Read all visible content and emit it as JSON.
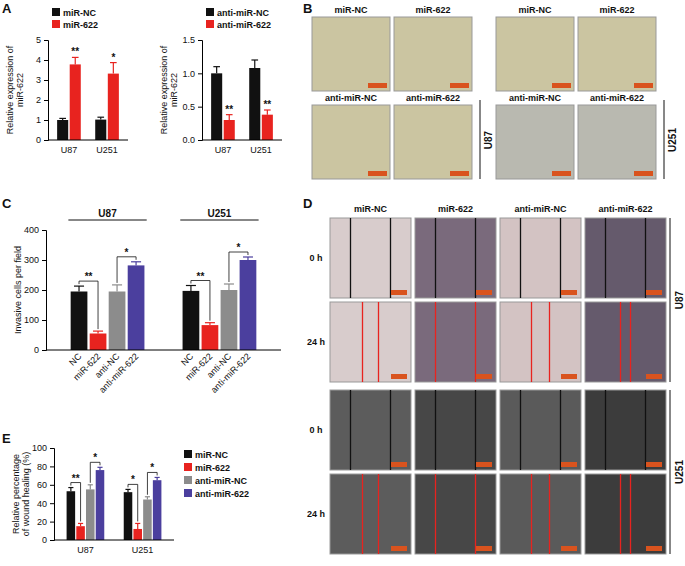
{
  "panel_labels": [
    "A",
    "B",
    "C",
    "D",
    "E"
  ],
  "chart_data": [
    {
      "type": "bar",
      "y_label": "Relative expression of miR-622",
      "categories": [
        "U87",
        "U251"
      ],
      "series": [
        {
          "name": "miR-NC",
          "color": "#111111",
          "values": [
            1.0,
            1.02
          ],
          "errors": [
            0.08,
            0.12
          ]
        },
        {
          "name": "miR-622",
          "color": "#e8231f",
          "values": [
            3.78,
            3.32
          ],
          "errors": [
            0.35,
            0.55
          ]
        }
      ],
      "ylim": [
        0,
        5
      ],
      "yticks": [
        0,
        1,
        2,
        3,
        4,
        5
      ],
      "legend": "top-left",
      "annotations": [
        {
          "text": "**",
          "category": 0,
          "series": 1
        },
        {
          "text": "*",
          "category": 1,
          "series": 1
        }
      ]
    },
    {
      "type": "bar",
      "y_label": "Relative expression of miR-622",
      "categories": [
        "U87",
        "U251"
      ],
      "series": [
        {
          "name": "anti-miR-NC",
          "color": "#111111",
          "values": [
            1.0,
            1.08
          ],
          "errors": [
            0.1,
            0.12
          ]
        },
        {
          "name": "anti-miR-622",
          "color": "#e8231f",
          "values": [
            0.3,
            0.38
          ],
          "errors": [
            0.08,
            0.07
          ]
        }
      ],
      "ylim": [
        0,
        1.5
      ],
      "yticks": [
        {
          "value": 0,
          "label": "0.0"
        },
        {
          "value": 0.5,
          "label": "0.5"
        },
        {
          "value": 1,
          "label": "1.0"
        },
        {
          "value": 1.5,
          "label": "1.5"
        }
      ],
      "legend": "top-left",
      "annotations": [
        {
          "text": "**",
          "category": 0,
          "series": 1
        },
        {
          "text": "**",
          "category": 1,
          "series": 1
        }
      ]
    },
    {
      "type": "bar",
      "y_label": "Invasive cells per field",
      "categories": [
        "NC",
        "miR-622",
        "anti-NC",
        "anti-miR-622"
      ],
      "colors": [
        "#111111",
        "#e8231f",
        "#8c8c8c",
        "#4b3f9e"
      ],
      "series": [
        {
          "name": "U87",
          "values": [
            195,
            55,
            195,
            282
          ],
          "errors": [
            18,
            8,
            22,
            12
          ]
        },
        {
          "name": "U251",
          "values": [
            197,
            83,
            200,
            300
          ],
          "errors": [
            18,
            8,
            20,
            10
          ]
        }
      ],
      "ylim": [
        0,
        400
      ],
      "yticks": [
        0,
        100,
        200,
        300,
        400
      ],
      "annotations": [
        {
          "text": "**",
          "series": 0,
          "between": [
            0,
            1
          ]
        },
        {
          "text": "*",
          "series": 0,
          "between": [
            2,
            3
          ]
        },
        {
          "text": "**",
          "series": 1,
          "between": [
            0,
            1
          ]
        },
        {
          "text": "*",
          "series": 1,
          "between": [
            2,
            3
          ]
        }
      ]
    },
    {
      "type": "bar",
      "y_label": "Relative percentage of wound healing (%)",
      "categories": [
        "U87",
        "U251"
      ],
      "series": [
        {
          "name": "miR-NC",
          "color": "#111111",
          "values": [
            53,
            52
          ],
          "errors": [
            4,
            3
          ]
        },
        {
          "name": "miR-622",
          "color": "#e8231f",
          "values": [
            15,
            12
          ],
          "errors": [
            3,
            6
          ]
        },
        {
          "name": "anti-miR-NC",
          "color": "#8c8c8c",
          "values": [
            55,
            44
          ],
          "errors": [
            5,
            3
          ]
        },
        {
          "name": "anti-miR-622",
          "color": "#4b3f9e",
          "values": [
            76,
            65
          ],
          "errors": [
            3,
            3
          ]
        }
      ],
      "ylim": [
        0,
        100
      ],
      "yticks": [
        0,
        20,
        40,
        60,
        80,
        100
      ],
      "legend": "right",
      "annotations": [
        {
          "text": "**",
          "category": 0,
          "between": [
            0,
            1
          ]
        },
        {
          "text": "*",
          "category": 0,
          "between": [
            2,
            3
          ]
        },
        {
          "text": "*",
          "category": 1,
          "between": [
            0,
            1
          ]
        },
        {
          "text": "*",
          "category": 1,
          "between": [
            2,
            3
          ]
        }
      ]
    }
  ],
  "image_panels": {
    "B": {
      "columns": [
        "miR-NC",
        "miR-622",
        "anti-miR-NC",
        "anti-miR-622"
      ],
      "cell_lines": [
        "U87",
        "U251"
      ]
    },
    "D": {
      "columns": [
        "miR-NC",
        "miR-622",
        "anti-miR-NC",
        "anti-miR-622"
      ],
      "cell_lines": [
        "U87",
        "U251"
      ],
      "times": [
        "0 h",
        "24 h"
      ]
    }
  }
}
